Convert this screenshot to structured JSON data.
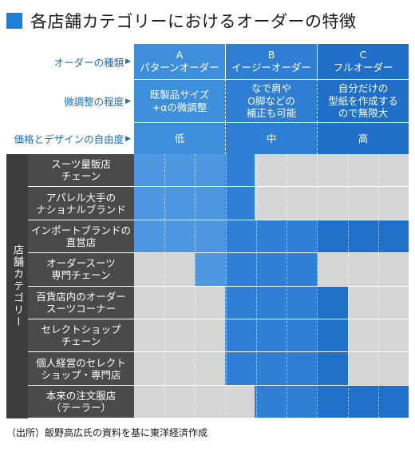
{
  "title": "各店舗カテゴリーにおけるオーダーの特徴",
  "header_rows": [
    {
      "label": "オーダーの種類",
      "cells": [
        "A\nパターンオーダー",
        "B\nイージーオーダー",
        "C\nフルオーダー"
      ]
    },
    {
      "label": "微調整の程度",
      "cells": [
        "既製品サイズ\n+αの微調整",
        "なで肩や\nO脚などの\n補正も可能",
        "自分だけの\n型紙を作成する\nので無限大"
      ]
    },
    {
      "label": "価格とデザインの自由度",
      "cells": [
        "低",
        "中",
        "高"
      ]
    }
  ],
  "side_label": "店舗カテゴリー",
  "colors": {
    "A": "#4d97e0",
    "B": "#2f80d4",
    "C": "#1e70c8",
    "empty": "#d5d5d5"
  },
  "categories": [
    {
      "name": "スーツ量販店\nチェーン",
      "ranges": [
        [
          0,
          0.44
        ]
      ]
    },
    {
      "name": "アパレル大手の\nナショナルブランド",
      "ranges": [
        [
          0,
          0.44
        ]
      ]
    },
    {
      "name": "インポートブランドの\n直営店",
      "ranges": [
        [
          0,
          1.0
        ]
      ]
    },
    {
      "name": "オーダースーツ\n専門チェーン",
      "ranges": [
        [
          0.22,
          0.67
        ]
      ]
    },
    {
      "name": "百貨店内のオーダー\nスーツコーナー",
      "ranges": [
        [
          0.33,
          0.78
        ]
      ]
    },
    {
      "name": "セレクトショップ\nチェーン",
      "ranges": [
        [
          0.33,
          0.78
        ]
      ]
    },
    {
      "name": "個人経営のセレクト\nショップ・専門店",
      "ranges": [
        [
          0.33,
          0.78
        ]
      ]
    },
    {
      "name": "本来の注文服店\n（テーラー）",
      "ranges": [
        [
          0.44,
          1.0
        ]
      ]
    }
  ],
  "source": "（出所）飯野高広氏の資料を基に東洋経済作成",
  "arrow": "▶"
}
